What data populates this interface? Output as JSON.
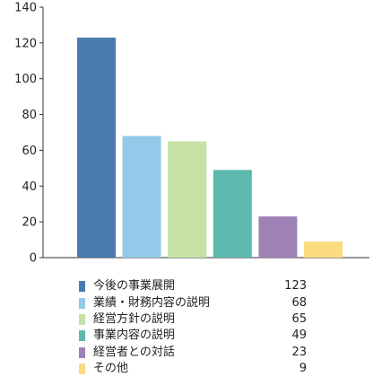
{
  "chart_data": {
    "type": "bar",
    "categories": [
      "今後の事業展開",
      "業績・財務内容の説明",
      "経営方針の説明",
      "事業内容の説明",
      "経営者との対話",
      "その他"
    ],
    "values": [
      123,
      68,
      65,
      49,
      23,
      9
    ],
    "colors": [
      "#4a7aae",
      "#93cae9",
      "#c6e1a6",
      "#5fb8ad",
      "#9e82b6",
      "#fbdb80"
    ],
    "ylim": [
      0,
      140
    ],
    "yticks": [
      "0",
      "20",
      "40",
      "60",
      "80",
      "100",
      "120",
      "140"
    ],
    "value_labels": [
      "123",
      "68",
      "65",
      "49",
      "23",
      "9"
    ],
    "grid": false,
    "legend_position": "bottom"
  }
}
